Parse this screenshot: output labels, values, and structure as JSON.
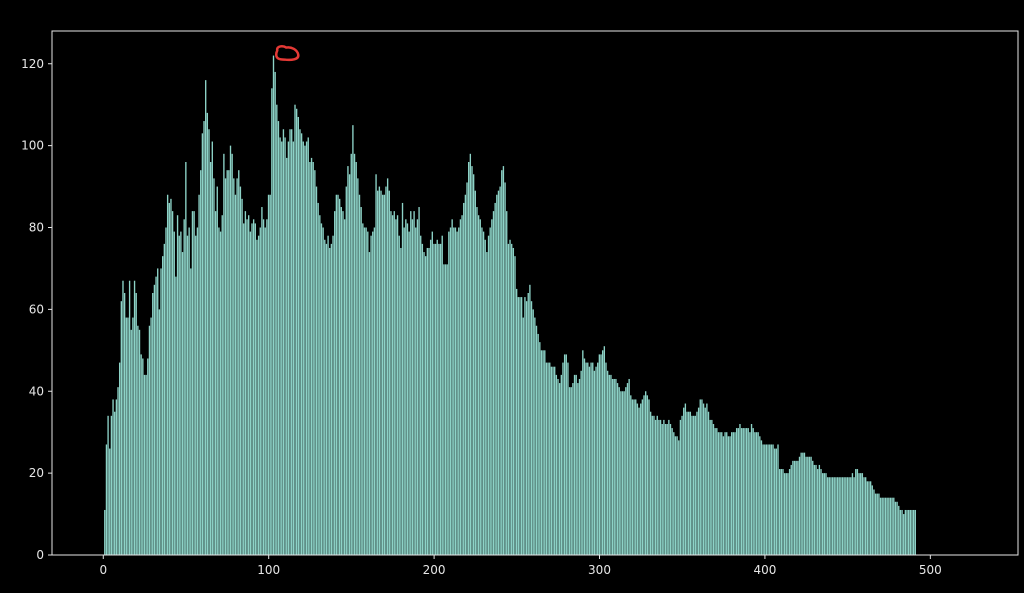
{
  "chart_data": {
    "type": "bar",
    "title": "",
    "xlabel": "",
    "ylabel": "",
    "xlim": [
      -31,
      553
    ],
    "ylim": [
      0,
      128
    ],
    "x_ticks": [
      0,
      100,
      200,
      300,
      400,
      500
    ],
    "x_tick_labels": [
      "0",
      "100",
      "200",
      "300",
      "400",
      "500"
    ],
    "y_ticks": [
      0,
      20,
      40,
      60,
      80,
      100,
      120
    ],
    "y_tick_labels": [
      "0",
      "20",
      "40",
      "60",
      "80",
      "100",
      "120"
    ],
    "grid": false,
    "bar_color": "#8dd3c7",
    "background_color": "#000000",
    "foreground_color": "#e6e6e6",
    "highlight_color": "#e53935",
    "highlight_shape": "circle",
    "highlight_at": {
      "x": 110,
      "y": 122
    },
    "x_start": 1,
    "values": [
      11,
      27,
      34,
      26,
      34,
      38,
      35,
      38,
      41,
      47,
      62,
      67,
      64,
      58,
      58,
      67,
      55,
      58,
      67,
      64,
      56,
      55,
      49,
      48,
      44,
      44,
      48,
      56,
      58,
      64,
      66,
      68,
      70,
      60,
      70,
      73,
      76,
      80,
      88,
      86,
      87,
      84,
      79,
      68,
      83,
      78,
      79,
      74,
      82,
      96,
      78,
      80,
      70,
      84,
      84,
      78,
      80,
      88,
      94,
      103,
      106,
      116,
      108,
      104,
      96,
      101,
      92,
      84,
      90,
      80,
      79,
      83,
      98,
      92,
      94,
      94,
      100,
      98,
      92,
      88,
      92,
      94,
      90,
      87,
      81,
      84,
      82,
      83,
      79,
      81,
      82,
      81,
      77,
      78,
      80,
      85,
      82,
      80,
      82,
      88,
      88,
      114,
      122,
      118,
      110,
      106,
      102,
      101,
      104,
      102,
      97,
      101,
      104,
      104,
      101,
      110,
      109,
      107,
      104,
      103,
      101,
      100,
      101,
      102,
      96,
      97,
      96,
      94,
      90,
      86,
      83,
      81,
      80,
      77,
      76,
      78,
      75,
      76,
      78,
      84,
      88,
      88,
      87,
      85,
      84,
      82,
      90,
      95,
      93,
      98,
      105,
      98,
      96,
      92,
      88,
      85,
      81,
      80,
      80,
      79,
      74,
      78,
      79,
      80,
      93,
      89,
      90,
      89,
      88,
      88,
      90,
      92,
      89,
      84,
      83,
      84,
      82,
      83,
      78,
      75,
      86,
      80,
      82,
      81,
      79,
      84,
      82,
      84,
      80,
      82,
      85,
      78,
      76,
      74,
      73,
      75,
      75,
      77,
      79,
      76,
      76,
      77,
      76,
      76,
      78,
      71,
      71,
      71,
      79,
      80,
      82,
      80,
      80,
      79,
      80,
      82,
      83,
      86,
      88,
      91,
      96,
      98,
      95,
      93,
      89,
      85,
      83,
      82,
      80,
      79,
      77,
      74,
      78,
      80,
      82,
      84,
      86,
      88,
      89,
      90,
      94,
      95,
      91,
      84,
      76,
      77,
      76,
      75,
      73,
      65,
      63,
      63,
      63,
      58,
      63,
      62,
      64,
      66,
      62,
      60,
      58,
      56,
      54,
      52,
      50,
      50,
      50,
      47,
      47,
      47,
      46,
      46,
      46,
      44,
      43,
      42,
      44,
      47,
      49,
      49,
      47,
      41,
      41,
      42,
      44,
      44,
      42,
      43,
      45,
      50,
      48,
      47,
      47,
      46,
      47,
      47,
      45,
      46,
      47,
      49,
      49,
      50,
      51,
      47,
      45,
      44,
      44,
      43,
      43,
      43,
      42,
      41,
      40,
      40,
      40,
      41,
      42,
      43,
      39,
      38,
      38,
      38,
      37,
      36,
      37,
      38,
      39,
      40,
      39,
      38,
      35,
      34,
      34,
      33,
      34,
      33,
      33,
      32,
      33,
      32,
      32,
      33,
      32,
      31,
      30,
      29,
      29,
      28,
      33,
      34,
      36,
      37,
      35,
      35,
      35,
      34,
      34,
      34,
      35,
      36,
      38,
      38,
      37,
      36,
      37,
      35,
      33,
      33,
      32,
      31,
      31,
      30,
      30,
      30,
      29,
      30,
      30,
      29,
      29,
      30,
      30,
      30,
      31,
      31,
      32,
      31,
      31,
      31,
      31,
      31,
      30,
      32,
      31,
      30,
      30,
      30,
      29,
      28,
      27,
      27,
      27,
      27,
      27,
      27,
      27,
      26,
      26,
      27,
      21,
      21,
      21,
      20,
      20,
      20,
      21,
      22,
      23,
      23,
      23,
      23,
      24,
      25,
      25,
      25,
      24,
      24,
      24,
      24,
      23,
      22,
      22,
      21,
      22,
      21,
      20,
      20,
      20,
      19,
      19,
      19,
      19,
      19,
      19,
      19,
      19,
      19,
      19,
      19,
      19,
      19,
      19,
      19,
      20,
      19,
      21,
      21,
      20,
      20,
      20,
      19,
      19,
      18,
      18,
      18,
      17,
      16,
      15,
      15,
      15,
      14,
      14,
      14,
      14,
      14,
      14,
      14,
      14,
      14,
      13,
      13,
      12,
      11,
      11,
      10,
      11,
      11,
      11,
      11,
      11,
      11,
      11
    ]
  }
}
